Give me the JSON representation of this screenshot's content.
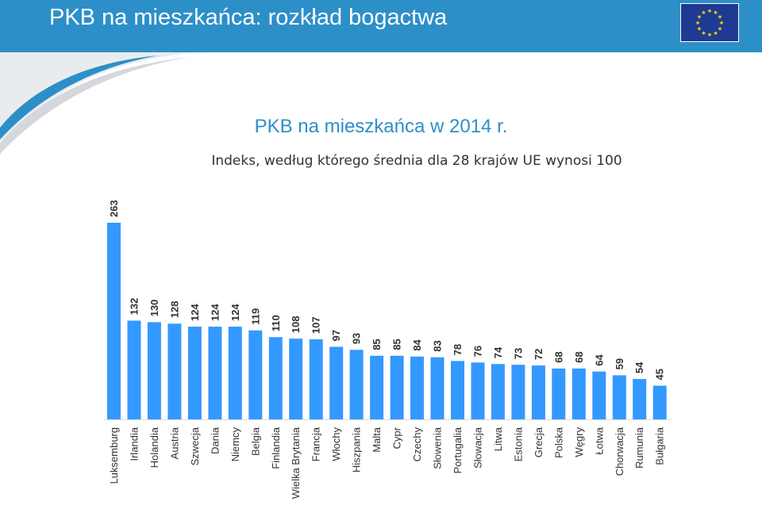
{
  "header": {
    "title": "PKB na mieszkańca: rozkład bogactwa"
  },
  "colors": {
    "header": "#2d8fc8",
    "bar": "#3399ff",
    "flag": "#1f3a93",
    "stars": "#ffdd00"
  },
  "chart_data": {
    "type": "bar",
    "title": "PKB na mieszkańca w 2014 r.",
    "subtitle": "Indeks, według którego średnia dla 28 krajów UE wynosi 100",
    "categories": [
      "Luksemburg",
      "Irlandia",
      "Holandia",
      "Austria",
      "Szwecja",
      "Dania",
      "Niemcy",
      "Belgia",
      "Finlandia",
      "Wielka Brytania",
      "Francja",
      "Włochy",
      "Hiszpania",
      "Malta",
      "Cypr",
      "Czechy",
      "Słowenia",
      "Portugalia",
      "Słowacja",
      "Litwa",
      "Estonia",
      "Grecja",
      "Polska",
      "Węgry",
      "Łotwa",
      "Chorwacja",
      "Rumunia",
      "Bułgaria"
    ],
    "values": [
      263,
      132,
      130,
      128,
      124,
      124,
      124,
      119,
      110,
      108,
      107,
      97,
      93,
      85,
      85,
      84,
      83,
      78,
      76,
      74,
      73,
      72,
      68,
      68,
      64,
      59,
      54,
      45
    ],
    "data_labels": true,
    "grid": false,
    "legend": "none"
  }
}
